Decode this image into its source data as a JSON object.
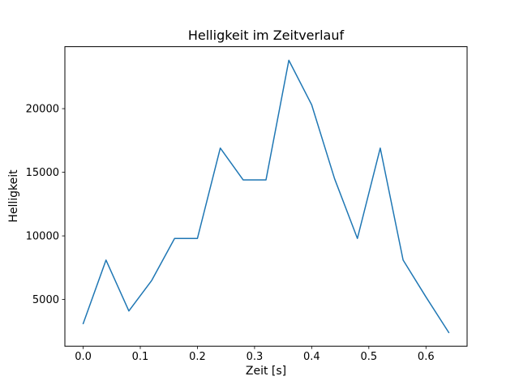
{
  "figure": {
    "background": "#ffffff"
  },
  "chart_data": {
    "type": "line",
    "title": "Helligkeit im Zeitverlauf",
    "xlabel": "Zeit [s]",
    "ylabel": "Helligkeit",
    "x": [
      0.0,
      0.04,
      0.08,
      0.12,
      0.16,
      0.2,
      0.24,
      0.28,
      0.32,
      0.36,
      0.4,
      0.44,
      0.48,
      0.52,
      0.56,
      0.6,
      0.64
    ],
    "y": [
      3100,
      8100,
      4100,
      6500,
      9800,
      9800,
      16900,
      14400,
      14400,
      23800,
      20300,
      14500,
      9800,
      16900,
      8100,
      5200,
      2400
    ],
    "xlim": [
      -0.032,
      0.672
    ],
    "ylim": [
      1330,
      24870
    ],
    "xticks": [
      0.0,
      0.1,
      0.2,
      0.3,
      0.4,
      0.5,
      0.6
    ],
    "xtick_labels": [
      "0.0",
      "0.1",
      "0.2",
      "0.3",
      "0.4",
      "0.5",
      "0.6"
    ],
    "yticks": [
      5000,
      10000,
      15000,
      20000
    ],
    "ytick_labels": [
      "5000",
      "10000",
      "15000",
      "20000"
    ],
    "line_color": "#1f77b4",
    "axis_color": "#000000",
    "grid": false,
    "legend": false
  }
}
